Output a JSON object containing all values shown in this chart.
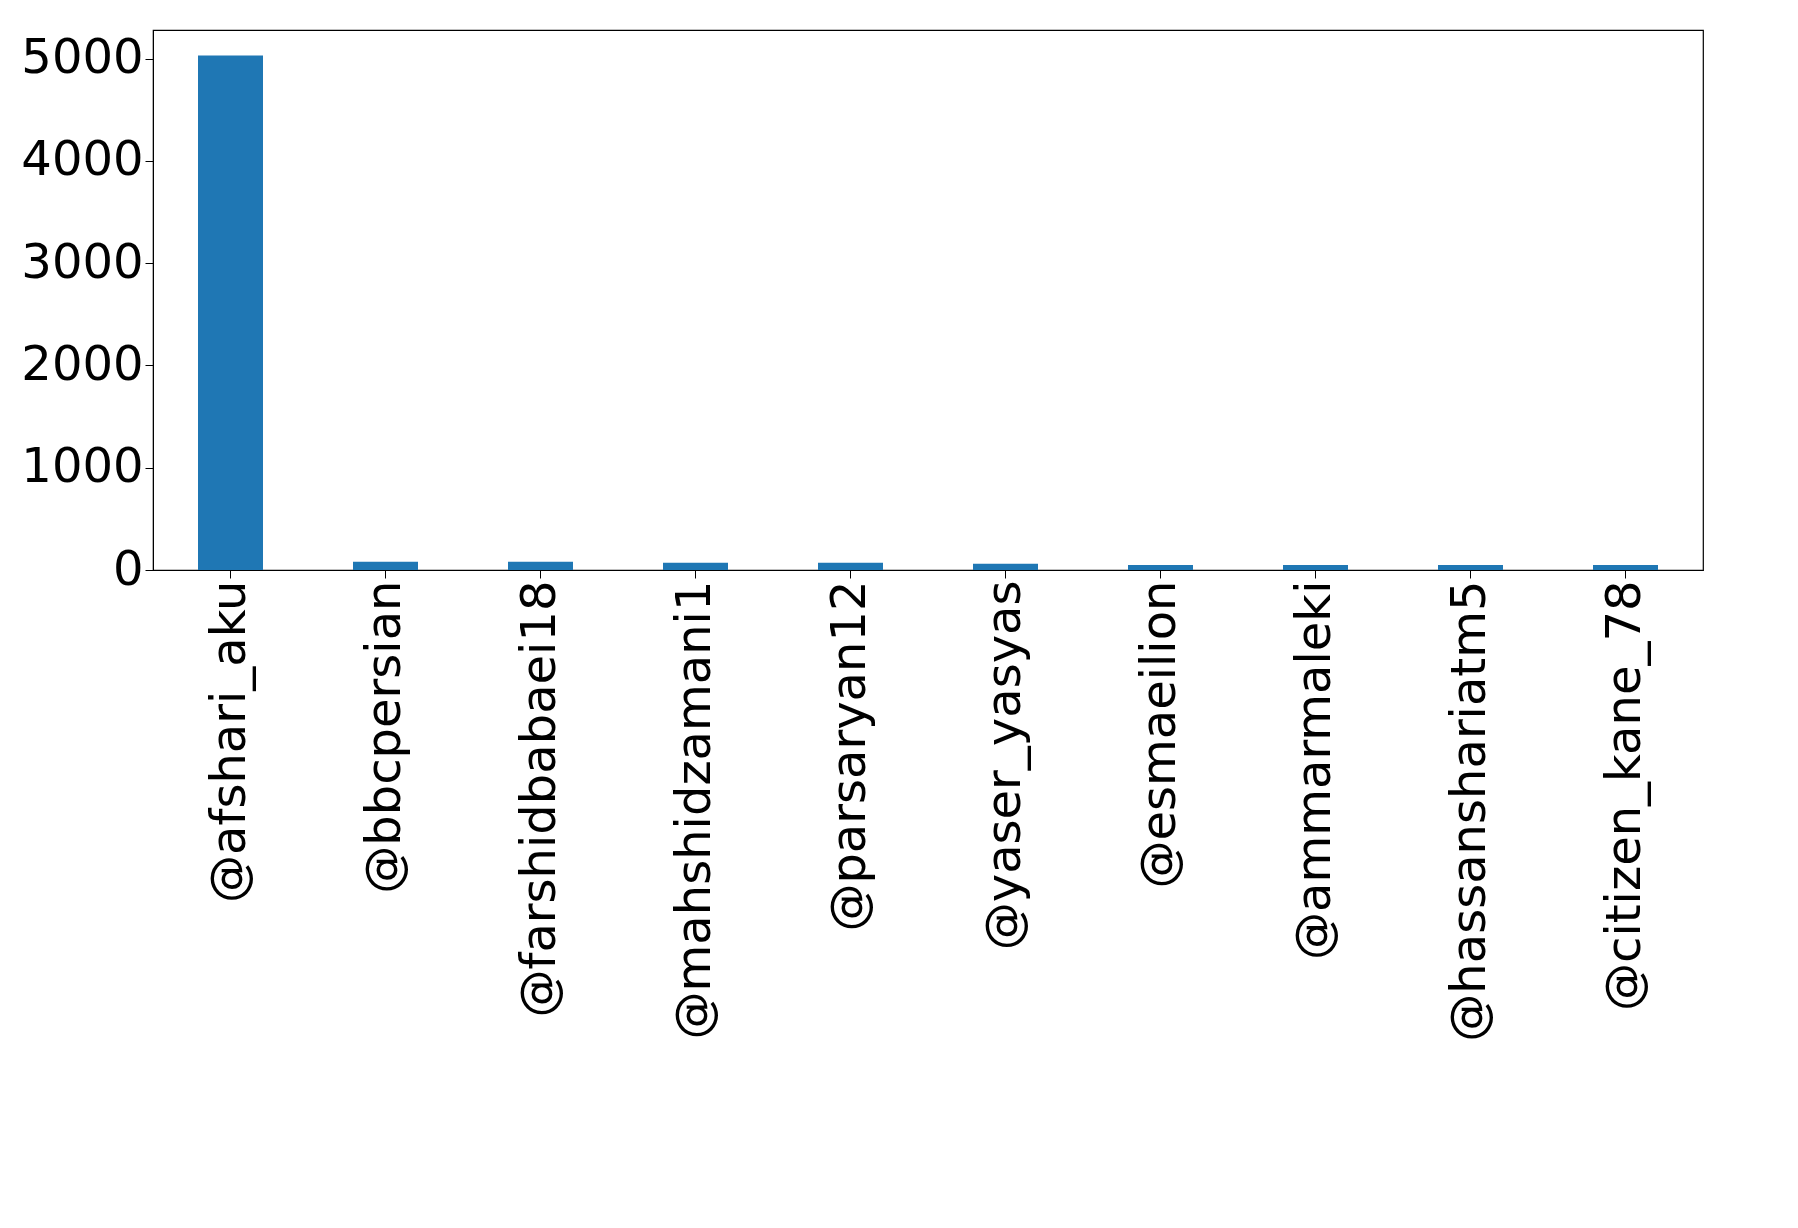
{
  "chart_data": {
    "type": "bar",
    "categories": [
      "@afshari_aku",
      "@bbcpersian",
      "@farshidbabaei18",
      "@mahshidzamani1",
      "@parsaryan12",
      "@yaser_yasyas",
      "@esmaeilion",
      "@ammarmaleki",
      "@hassanshariatm5",
      "@citizen_kane_78"
    ],
    "values": [
      5030,
      80,
      80,
      70,
      70,
      60,
      50,
      50,
      50,
      50
    ],
    "color": "#1f77b4",
    "ylim": [
      0,
      5280
    ],
    "yticks": [
      0,
      1000,
      2000,
      3000,
      4000,
      5000
    ],
    "grid": false
  }
}
